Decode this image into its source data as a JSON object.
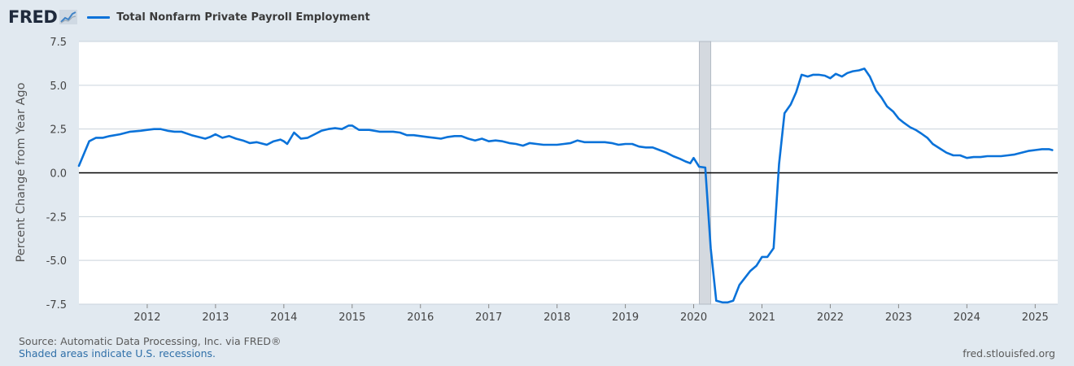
{
  "brand": {
    "logo_text": "FRED",
    "logo_icon": "chart-line-icon"
  },
  "legend": {
    "label": "Total Nonfarm Private Payroll Employment",
    "color": "#0a72d9"
  },
  "footer": {
    "source": "Source: Automatic Data Processing, Inc. via FRED®",
    "note": "Shaded areas indicate U.S. recessions.",
    "site": "fred.stlouisfed.org"
  },
  "colors": {
    "background": "#e1e9f0",
    "plot_bg": "#ffffff",
    "grid": "#c9d3dc",
    "recession": "#d4d9df",
    "zero_line": "#000000",
    "series": "#0a72d9"
  },
  "chart_data": {
    "type": "line",
    "title": "",
    "xlabel": "",
    "ylabel": "Percent Change from Year Ago",
    "xlim": [
      2011.0,
      2025.33
    ],
    "ylim": [
      -7.5,
      7.5
    ],
    "y_ticks": [
      "7.5",
      "5.0",
      "2.5",
      "0.0",
      "-2.5",
      "-5.0",
      "-7.5"
    ],
    "x_ticks": [
      "2012",
      "2013",
      "2014",
      "2015",
      "2016",
      "2017",
      "2018",
      "2019",
      "2020",
      "2021",
      "2022",
      "2023",
      "2024",
      "2025"
    ],
    "grid": true,
    "legend_position": "top-left",
    "zero_line": true,
    "recessions": [
      {
        "start": 2020.083,
        "end": 2020.25
      }
    ],
    "series": [
      {
        "name": "Total Nonfarm Private Payroll Employment",
        "color": "#0a72d9",
        "x": [
          2011.0,
          2011.15,
          2011.25,
          2011.35,
          2011.45,
          2011.6,
          2011.75,
          2011.9,
          2012.0,
          2012.1,
          2012.2,
          2012.3,
          2012.4,
          2012.5,
          2012.65,
          2012.75,
          2012.85,
          2012.92,
          2013.0,
          2013.1,
          2013.2,
          2013.3,
          2013.4,
          2013.5,
          2013.6,
          2013.75,
          2013.85,
          2013.95,
          2014.0,
          2014.05,
          2014.15,
          2014.25,
          2014.35,
          2014.45,
          2014.55,
          2014.65,
          2014.75,
          2014.85,
          2014.95,
          2015.0,
          2015.1,
          2015.25,
          2015.4,
          2015.5,
          2015.6,
          2015.7,
          2015.8,
          2015.9,
          2016.0,
          2016.1,
          2016.2,
          2016.3,
          2016.4,
          2016.5,
          2016.6,
          2016.7,
          2016.8,
          2016.9,
          2017.0,
          2017.1,
          2017.2,
          2017.3,
          2017.4,
          2017.5,
          2017.6,
          2017.7,
          2017.8,
          2017.9,
          2018.0,
          2018.1,
          2018.2,
          2018.3,
          2018.4,
          2018.5,
          2018.6,
          2018.7,
          2018.8,
          2018.9,
          2019.0,
          2019.1,
          2019.2,
          2019.3,
          2019.4,
          2019.5,
          2019.6,
          2019.7,
          2019.8,
          2019.88,
          2019.95,
          2020.0,
          2020.08,
          2020.17,
          2020.25,
          2020.33,
          2020.42,
          2020.5,
          2020.58,
          2020.67,
          2020.75,
          2020.83,
          2020.92,
          2021.0,
          2021.08,
          2021.17,
          2021.25,
          2021.33,
          2021.42,
          2021.5,
          2021.58,
          2021.67,
          2021.75,
          2021.83,
          2021.92,
          2022.0,
          2022.08,
          2022.17,
          2022.25,
          2022.33,
          2022.42,
          2022.5,
          2022.58,
          2022.67,
          2022.75,
          2022.83,
          2022.92,
          2023.0,
          2023.08,
          2023.17,
          2023.25,
          2023.33,
          2023.42,
          2023.5,
          2023.6,
          2023.7,
          2023.8,
          2023.9,
          2024.0,
          2024.1,
          2024.2,
          2024.3,
          2024.4,
          2024.5,
          2024.6,
          2024.7,
          2024.8,
          2024.9,
          2025.0,
          2025.1,
          2025.2,
          2025.25
        ],
        "y": [
          0.4,
          1.8,
          2.0,
          2.0,
          2.1,
          2.2,
          2.35,
          2.4,
          2.45,
          2.5,
          2.5,
          2.4,
          2.35,
          2.35,
          2.15,
          2.05,
          1.95,
          2.05,
          2.2,
          2.0,
          2.1,
          1.95,
          1.85,
          1.7,
          1.75,
          1.6,
          1.8,
          1.9,
          1.8,
          1.65,
          2.3,
          1.95,
          2.0,
          2.2,
          2.4,
          2.5,
          2.55,
          2.5,
          2.7,
          2.7,
          2.45,
          2.45,
          2.35,
          2.35,
          2.35,
          2.3,
          2.15,
          2.15,
          2.1,
          2.05,
          2.0,
          1.95,
          2.05,
          2.1,
          2.1,
          1.95,
          1.85,
          1.95,
          1.8,
          1.85,
          1.8,
          1.7,
          1.65,
          1.55,
          1.7,
          1.65,
          1.6,
          1.6,
          1.6,
          1.65,
          1.7,
          1.85,
          1.75,
          1.75,
          1.75,
          1.75,
          1.7,
          1.6,
          1.65,
          1.65,
          1.5,
          1.45,
          1.45,
          1.3,
          1.15,
          0.95,
          0.8,
          0.65,
          0.55,
          0.85,
          0.35,
          0.3,
          -4.3,
          -7.3,
          -7.4,
          -7.4,
          -7.3,
          -6.4,
          -6.0,
          -5.6,
          -5.3,
          -4.8,
          -4.8,
          -4.3,
          0.5,
          3.4,
          3.9,
          4.6,
          5.6,
          5.5,
          5.6,
          5.6,
          5.55,
          5.4,
          5.65,
          5.5,
          5.7,
          5.8,
          5.85,
          5.95,
          5.5,
          4.7,
          4.3,
          3.8,
          3.5,
          3.1,
          2.85,
          2.6,
          2.45,
          2.25,
          2.0,
          1.65,
          1.4,
          1.15,
          1.0,
          1.0,
          0.85,
          0.9,
          0.9,
          0.95,
          0.95,
          0.95,
          1.0,
          1.05,
          1.15,
          1.25,
          1.3,
          1.35,
          1.35,
          1.3
        ]
      }
    ]
  }
}
